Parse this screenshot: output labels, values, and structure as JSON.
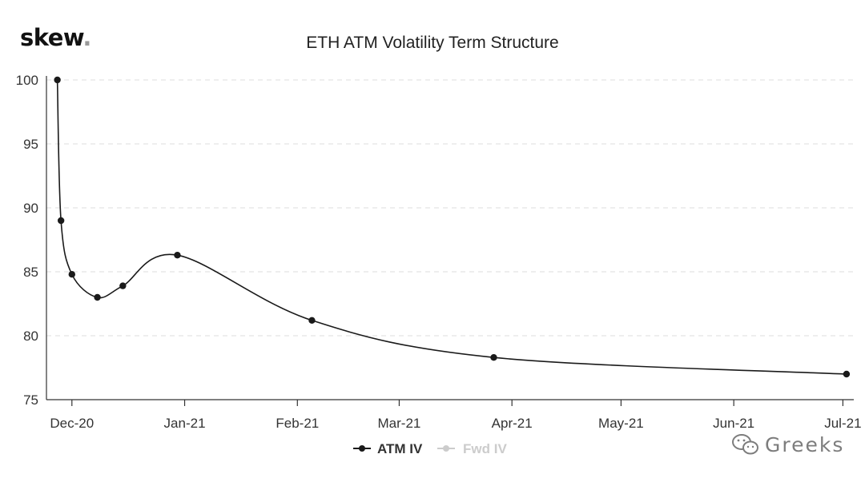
{
  "brand": {
    "logo_text": "skew",
    "logo_dot": "."
  },
  "watermark": {
    "text": "Greeks",
    "icon": "wechat-icon"
  },
  "chart_data": {
    "type": "line",
    "title": "ETH ATM Volatility Term Structure",
    "xlabel": "",
    "ylabel": "",
    "ylim": [
      75,
      100
    ],
    "yticks": [
      75,
      80,
      85,
      90,
      95,
      100
    ],
    "xlim": [
      "2020-11-24",
      "2021-07-04"
    ],
    "xticks": [
      {
        "date": "2020-12-01",
        "label": "Dec-20"
      },
      {
        "date": "2021-01-01",
        "label": "Jan-21"
      },
      {
        "date": "2021-02-01",
        "label": "Feb-21"
      },
      {
        "date": "2021-03-01",
        "label": "Mar-21"
      },
      {
        "date": "2021-04-01",
        "label": "Apr-21"
      },
      {
        "date": "2021-05-01",
        "label": "May-21"
      },
      {
        "date": "2021-06-01",
        "label": "Jun-21"
      },
      {
        "date": "2021-07-01",
        "label": "Jul-21"
      }
    ],
    "grid": true,
    "legend_position": "bottom-center",
    "series": [
      {
        "name": "ATM IV",
        "color": "#1a1a1a",
        "points": [
          {
            "x": "2020-11-27",
            "y": 100.0
          },
          {
            "x": "2020-11-28",
            "y": 89.0
          },
          {
            "x": "2020-12-01",
            "y": 84.8
          },
          {
            "x": "2020-12-08",
            "y": 83.0
          },
          {
            "x": "2020-12-15",
            "y": 83.9
          },
          {
            "x": "2020-12-30",
            "y": 86.3
          },
          {
            "x": "2021-02-05",
            "y": 81.2
          },
          {
            "x": "2021-03-27",
            "y": 78.3
          },
          {
            "x": "2021-07-02",
            "y": 77.0
          }
        ]
      },
      {
        "name": "Fwd IV",
        "color": "#c8c8c8",
        "hidden": true,
        "points": []
      }
    ]
  }
}
